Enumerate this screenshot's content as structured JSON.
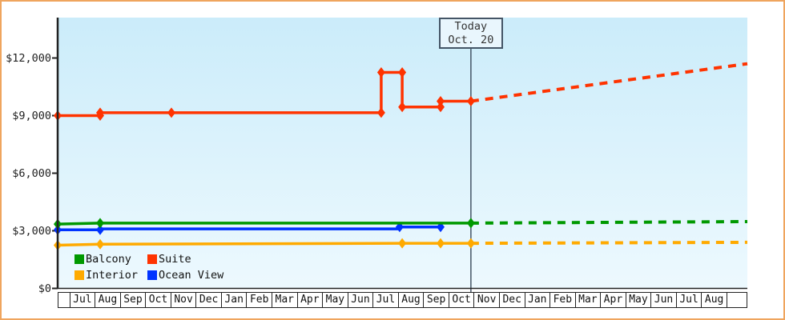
{
  "chart_data": {
    "type": "line",
    "title": "",
    "description": "Cruise cabin price history with projected (dashed) prices after today",
    "x_unit": "month-index (0 = start of first Jul column)",
    "x_axis": {
      "months": [
        "Jul",
        "Aug",
        "Sep",
        "Oct",
        "Nov",
        "Dec",
        "Jan",
        "Feb",
        "Mar",
        "Apr",
        "May",
        "Jun",
        "Jul",
        "Aug",
        "Sep",
        "Oct",
        "Nov",
        "Dec",
        "Jan",
        "Feb",
        "Mar",
        "Apr",
        "May",
        "Jun",
        "Jul",
        "Aug"
      ]
    },
    "y_axis": {
      "ticks": [
        {
          "label": "$0",
          "value": 0
        },
        {
          "label": "$3,000",
          "value": 3000
        },
        {
          "label": "$6,000",
          "value": 6000
        },
        {
          "label": "$9,000",
          "value": 9000
        },
        {
          "label": "$12,000",
          "value": 12000
        }
      ],
      "range": [
        0,
        14100
      ],
      "grid": false
    },
    "today_marker": {
      "line1": "Today",
      "line2": "Oct. 20",
      "x_month": 15.92
    },
    "series": [
      {
        "name": "Ocean View",
        "color": "#0033ff",
        "solid": [
          [
            -0.43,
            3050
          ],
          [
            1.25,
            3050
          ],
          [
            1.25,
            3100
          ],
          [
            13.1,
            3100
          ],
          [
            13.1,
            3200
          ],
          [
            14.72,
            3200
          ]
        ],
        "projection": [],
        "markers": [
          [
            -0.43,
            3050
          ],
          [
            1.25,
            3050
          ],
          [
            13.1,
            3200
          ],
          [
            14.72,
            3200
          ]
        ]
      },
      {
        "name": "Balcony",
        "color": "#009900",
        "solid": [
          [
            -0.43,
            3350
          ],
          [
            1.25,
            3400
          ],
          [
            15.92,
            3400
          ]
        ],
        "projection": [
          [
            15.92,
            3400
          ],
          [
            26.86,
            3480
          ]
        ],
        "markers": [
          [
            -0.43,
            3350
          ],
          [
            1.25,
            3400
          ],
          [
            15.92,
            3400
          ]
        ]
      },
      {
        "name": "Interior",
        "color": "#ffaa00",
        "solid": [
          [
            -0.43,
            2250
          ],
          [
            1.25,
            2300
          ],
          [
            13.2,
            2350
          ],
          [
            14.72,
            2350
          ],
          [
            15.92,
            2350
          ]
        ],
        "projection": [
          [
            15.92,
            2350
          ],
          [
            26.86,
            2400
          ]
        ],
        "markers": [
          [
            -0.43,
            2250
          ],
          [
            1.25,
            2300
          ],
          [
            13.2,
            2350
          ],
          [
            14.72,
            2350
          ],
          [
            15.92,
            2350
          ]
        ]
      },
      {
        "name": "Suite",
        "color": "#ff3300",
        "solid": [
          [
            -0.43,
            9000
          ],
          [
            1.25,
            9000
          ],
          [
            1.25,
            9150
          ],
          [
            4.07,
            9150
          ],
          [
            12.37,
            9150
          ],
          [
            12.37,
            11250
          ],
          [
            13.2,
            11250
          ],
          [
            13.2,
            9450
          ],
          [
            14.72,
            9450
          ],
          [
            14.72,
            9750
          ],
          [
            15.92,
            9750
          ]
        ],
        "projection": [
          [
            15.92,
            9750
          ],
          [
            26.86,
            11700
          ]
        ],
        "markers": [
          [
            -0.43,
            9000
          ],
          [
            1.25,
            9000
          ],
          [
            1.25,
            9150
          ],
          [
            4.07,
            9150
          ],
          [
            12.37,
            9150
          ],
          [
            12.37,
            11250
          ],
          [
            13.2,
            11250
          ],
          [
            13.2,
            9450
          ],
          [
            14.72,
            9450
          ],
          [
            14.72,
            9750
          ],
          [
            15.92,
            9750
          ]
        ]
      }
    ],
    "legend": [
      {
        "label": "Balcony",
        "color": "#009900"
      },
      {
        "label": "Suite",
        "color": "#ff3300"
      },
      {
        "label": "Interior",
        "color": "#ffaa00"
      },
      {
        "label": "Ocean View",
        "color": "#0033ff"
      }
    ],
    "colors": {
      "frame_border": "#efa55e",
      "plot_bg_top": "#cbecfa",
      "plot_bg_bottom": "#edf9fe",
      "axis": "#222222",
      "today_line": "#445566",
      "today_box_fill": "#e9f6fd"
    }
  }
}
